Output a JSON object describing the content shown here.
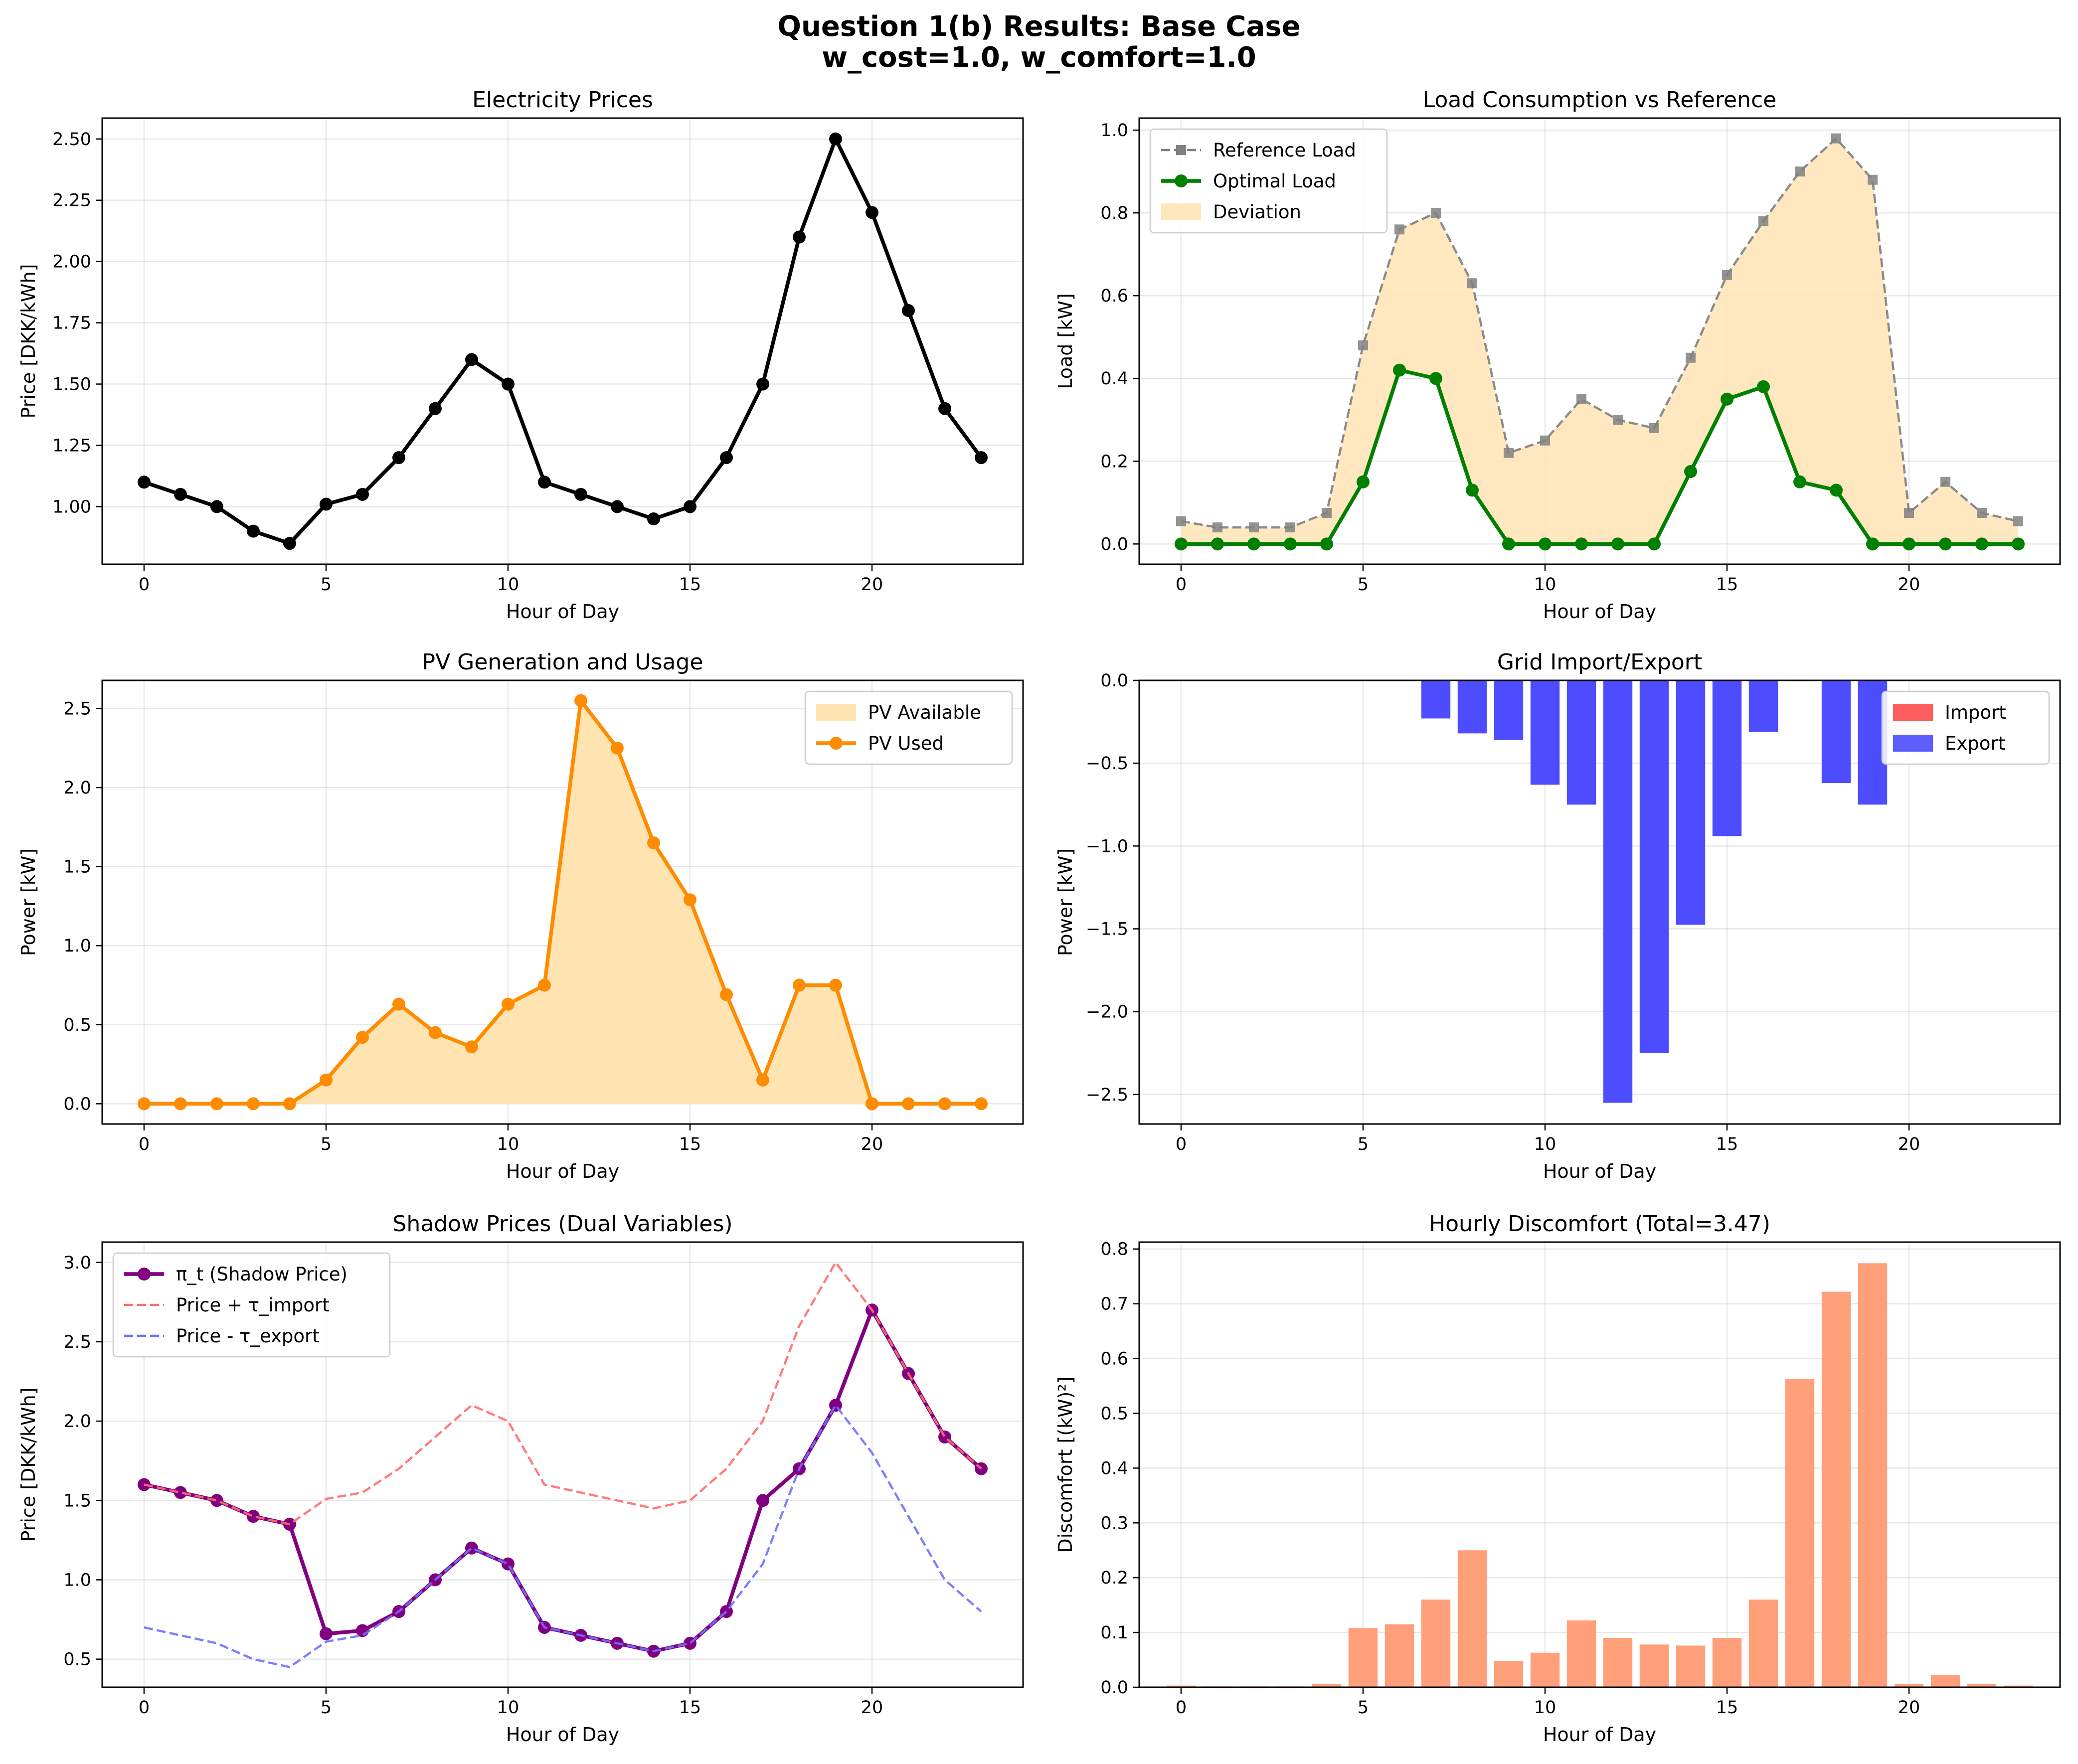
{
  "figure": {
    "title_line1": "Question 1(b) Results: Base Case",
    "title_line2": "w_cost=1.0, w_comfort=1.0"
  },
  "chart_data": [
    {
      "id": "prices",
      "type": "line",
      "title": "Electricity Prices",
      "xlabel": "Hour of Day",
      "ylabel": "Price [DKK/kWh]",
      "xlim": [
        -1.15,
        24.15
      ],
      "ylim": [
        0.765,
        2.585
      ],
      "xticks": [
        0,
        5,
        10,
        15,
        20
      ],
      "yticks": [
        1.0,
        1.25,
        1.5,
        1.75,
        2.0,
        2.25,
        2.5
      ],
      "ytick_labels": [
        "1.00",
        "1.25",
        "1.50",
        "1.75",
        "2.00",
        "2.25",
        "2.50"
      ],
      "grid": true,
      "legend": null,
      "x": [
        0,
        1,
        2,
        3,
        4,
        5,
        6,
        7,
        8,
        9,
        10,
        11,
        12,
        13,
        14,
        15,
        16,
        17,
        18,
        19,
        20,
        21,
        22,
        23
      ],
      "series": [
        {
          "kind": "line",
          "color": "#000000",
          "marker": "circle",
          "values": [
            1.1,
            1.05,
            1.0,
            0.9,
            0.85,
            1.01,
            1.05,
            1.2,
            1.4,
            1.6,
            1.5,
            1.1,
            1.05,
            1.0,
            0.95,
            1.0,
            1.2,
            1.5,
            2.1,
            2.5,
            2.2,
            1.8,
            1.4,
            1.2
          ]
        }
      ]
    },
    {
      "id": "load",
      "type": "line",
      "title": "Load Consumption vs Reference",
      "xlabel": "Hour of Day",
      "ylabel": "Load [kW]",
      "xlim": [
        -1.15,
        24.15
      ],
      "ylim": [
        -0.049,
        1.029
      ],
      "xticks": [
        0,
        5,
        10,
        15,
        20
      ],
      "yticks": [
        0.0,
        0.2,
        0.4,
        0.6,
        0.8,
        1.0
      ],
      "ytick_labels": [
        "0.0",
        "0.2",
        "0.4",
        "0.6",
        "0.8",
        "1.0"
      ],
      "grid": true,
      "legend": "upper left",
      "x": [
        0,
        1,
        2,
        3,
        4,
        5,
        6,
        7,
        8,
        9,
        10,
        11,
        12,
        13,
        14,
        15,
        16,
        17,
        18,
        19,
        20,
        21,
        22,
        23
      ],
      "series": [
        {
          "name": "Reference Load",
          "kind": "line",
          "color": "#808080",
          "dashed": true,
          "marker": "square",
          "values": [
            0.055,
            0.04,
            0.04,
            0.04,
            0.075,
            0.48,
            0.76,
            0.8,
            0.63,
            0.22,
            0.25,
            0.35,
            0.3,
            0.28,
            0.45,
            0.65,
            0.78,
            0.9,
            0.98,
            0.88,
            0.075,
            0.15,
            0.075,
            0.055
          ]
        },
        {
          "name": "Optimal Load",
          "kind": "line",
          "color": "#008000",
          "marker": "circle",
          "values": [
            0,
            0,
            0,
            0,
            0,
            0.15,
            0.42,
            0.4,
            0.13,
            0,
            0,
            0,
            0,
            0,
            0.175,
            0.35,
            0.38,
            0.15,
            0.13,
            0,
            0,
            0,
            0,
            0
          ]
        },
        {
          "name": "Deviation",
          "kind": "fill_between",
          "color": "#FFE4B5",
          "between": [
            "Reference Load",
            "Optimal Load"
          ]
        }
      ]
    },
    {
      "id": "pv",
      "type": "area",
      "title": "PV Generation and Usage",
      "xlabel": "Hour of Day",
      "ylabel": "Power [kW]",
      "xlim": [
        -1.15,
        24.15
      ],
      "ylim": [
        -0.128,
        2.678
      ],
      "xticks": [
        0,
        5,
        10,
        15,
        20
      ],
      "yticks": [
        0.0,
        0.5,
        1.0,
        1.5,
        2.0,
        2.5
      ],
      "ytick_labels": [
        "0.0",
        "0.5",
        "1.0",
        "1.5",
        "2.0",
        "2.5"
      ],
      "grid": true,
      "legend": "upper right",
      "x": [
        0,
        1,
        2,
        3,
        4,
        5,
        6,
        7,
        8,
        9,
        10,
        11,
        12,
        13,
        14,
        15,
        16,
        17,
        18,
        19,
        20,
        21,
        22,
        23
      ],
      "series": [
        {
          "name": "PV Available",
          "kind": "area",
          "color": "#FFE0A8",
          "values": [
            0,
            0,
            0,
            0,
            0,
            0.15,
            0.42,
            0.63,
            0.45,
            0.36,
            0.63,
            0.75,
            2.55,
            2.25,
            1.65,
            1.29,
            0.69,
            0.15,
            0.75,
            0.75,
            0,
            0,
            0,
            0
          ]
        },
        {
          "name": "PV Used",
          "kind": "line",
          "color": "#FF8C00",
          "marker": "circle",
          "values": [
            0,
            0,
            0,
            0,
            0,
            0.15,
            0.42,
            0.63,
            0.45,
            0.36,
            0.63,
            0.75,
            2.55,
            2.25,
            1.65,
            1.29,
            0.69,
            0.15,
            0.75,
            0.75,
            0,
            0,
            0,
            0
          ]
        }
      ]
    },
    {
      "id": "grid",
      "type": "bar",
      "title": "Grid Import/Export",
      "xlabel": "Hour of Day",
      "ylabel": "Power [kW]",
      "xlim": [
        -1.15,
        24.15
      ],
      "ylim": [
        -2.678,
        0.0
      ],
      "xticks": [
        0,
        5,
        10,
        15,
        20
      ],
      "yticks": [
        0.0,
        -0.5,
        -1.0,
        -1.5,
        -2.0,
        -2.5
      ],
      "ytick_labels": [
        "0.0",
        "−0.5",
        "−1.0",
        "−1.5",
        "−2.0",
        "−2.5"
      ],
      "grid": true,
      "legend": "upper right",
      "x": [
        0,
        1,
        2,
        3,
        4,
        5,
        6,
        7,
        8,
        9,
        10,
        11,
        12,
        13,
        14,
        15,
        16,
        17,
        18,
        19,
        20,
        21,
        22,
        23
      ],
      "series": [
        {
          "name": "Import",
          "kind": "bar",
          "color": "#FF4D4D",
          "values": [
            0,
            0,
            0,
            0,
            0,
            0,
            0,
            0,
            0,
            0,
            0,
            0,
            0,
            0,
            0,
            0,
            0,
            0,
            0,
            0,
            0,
            0,
            0,
            0
          ]
        },
        {
          "name": "Export",
          "kind": "bar",
          "color": "#4D4DFF",
          "values": [
            0,
            0,
            0,
            0,
            0,
            0,
            0,
            -0.23,
            -0.32,
            -0.36,
            -0.63,
            -0.75,
            -2.55,
            -2.25,
            -1.475,
            -0.94,
            -0.31,
            0,
            -0.62,
            -0.75,
            0,
            0,
            0,
            0
          ]
        }
      ]
    },
    {
      "id": "shadow",
      "type": "line",
      "title": "Shadow Prices (Dual Variables)",
      "xlabel": "Hour of Day",
      "ylabel": "Price [DKK/kWh]",
      "xlim": [
        -1.15,
        24.15
      ],
      "ylim": [
        0.323,
        3.128
      ],
      "xticks": [
        0,
        5,
        10,
        15,
        20
      ],
      "yticks": [
        0.5,
        1.0,
        1.5,
        2.0,
        2.5,
        3.0
      ],
      "ytick_labels": [
        "0.5",
        "1.0",
        "1.5",
        "2.0",
        "2.5",
        "3.0"
      ],
      "grid": true,
      "legend": "upper left",
      "x": [
        0,
        1,
        2,
        3,
        4,
        5,
        6,
        7,
        8,
        9,
        10,
        11,
        12,
        13,
        14,
        15,
        16,
        17,
        18,
        19,
        20,
        21,
        22,
        23
      ],
      "series": [
        {
          "name": "π_t (Shadow Price)",
          "kind": "line",
          "color": "#800080",
          "marker": "circle",
          "values": [
            1.6,
            1.55,
            1.5,
            1.4,
            1.35,
            0.66,
            0.68,
            0.8,
            1.0,
            1.2,
            1.1,
            0.7,
            0.65,
            0.6,
            0.55,
            0.6,
            0.8,
            1.5,
            1.7,
            2.1,
            2.7,
            2.3,
            1.9,
            1.7
          ]
        },
        {
          "name": "Price + τ_import",
          "kind": "line",
          "color": "#FF6E6E",
          "dashed": true,
          "values": [
            1.6,
            1.55,
            1.5,
            1.4,
            1.35,
            1.51,
            1.55,
            1.7,
            1.9,
            2.1,
            2.0,
            1.6,
            1.55,
            1.5,
            1.45,
            1.5,
            1.7,
            2.0,
            2.6,
            3.0,
            2.7,
            2.3,
            1.9,
            1.7
          ]
        },
        {
          "name": "Price - τ_export",
          "kind": "line",
          "color": "#7070FF",
          "dashed": true,
          "values": [
            0.7,
            0.65,
            0.6,
            0.5,
            0.45,
            0.61,
            0.65,
            0.8,
            1.0,
            1.2,
            1.1,
            0.7,
            0.65,
            0.6,
            0.55,
            0.6,
            0.8,
            1.1,
            1.7,
            2.1,
            1.8,
            1.4,
            1.0,
            0.8
          ]
        }
      ]
    },
    {
      "id": "discomfort",
      "type": "bar",
      "title": "Hourly Discomfort (Total=3.47)",
      "xlabel": "Hour of Day",
      "ylabel": "Discomfort [(kW)²]",
      "xlim": [
        -1.15,
        24.15
      ],
      "ylim": [
        0.0,
        0.8125
      ],
      "xticks": [
        0,
        5,
        10,
        15,
        20
      ],
      "yticks": [
        0.0,
        0.1,
        0.2,
        0.3,
        0.4,
        0.5,
        0.6,
        0.7,
        0.8
      ],
      "ytick_labels": [
        "0.0",
        "0.1",
        "0.2",
        "0.3",
        "0.4",
        "0.5",
        "0.6",
        "0.7",
        "0.8"
      ],
      "grid": true,
      "legend": null,
      "x": [
        0,
        1,
        2,
        3,
        4,
        5,
        6,
        7,
        8,
        9,
        10,
        11,
        12,
        13,
        14,
        15,
        16,
        17,
        18,
        19,
        20,
        21,
        22,
        23
      ],
      "series": [
        {
          "kind": "bar",
          "color": "#FFA07A",
          "values": [
            0.003,
            0.0016,
            0.0016,
            0.0016,
            0.0056,
            0.108,
            0.115,
            0.16,
            0.25,
            0.048,
            0.063,
            0.122,
            0.09,
            0.078,
            0.076,
            0.09,
            0.16,
            0.563,
            0.722,
            0.774,
            0.0056,
            0.0225,
            0.0056,
            0.003
          ]
        }
      ]
    }
  ]
}
